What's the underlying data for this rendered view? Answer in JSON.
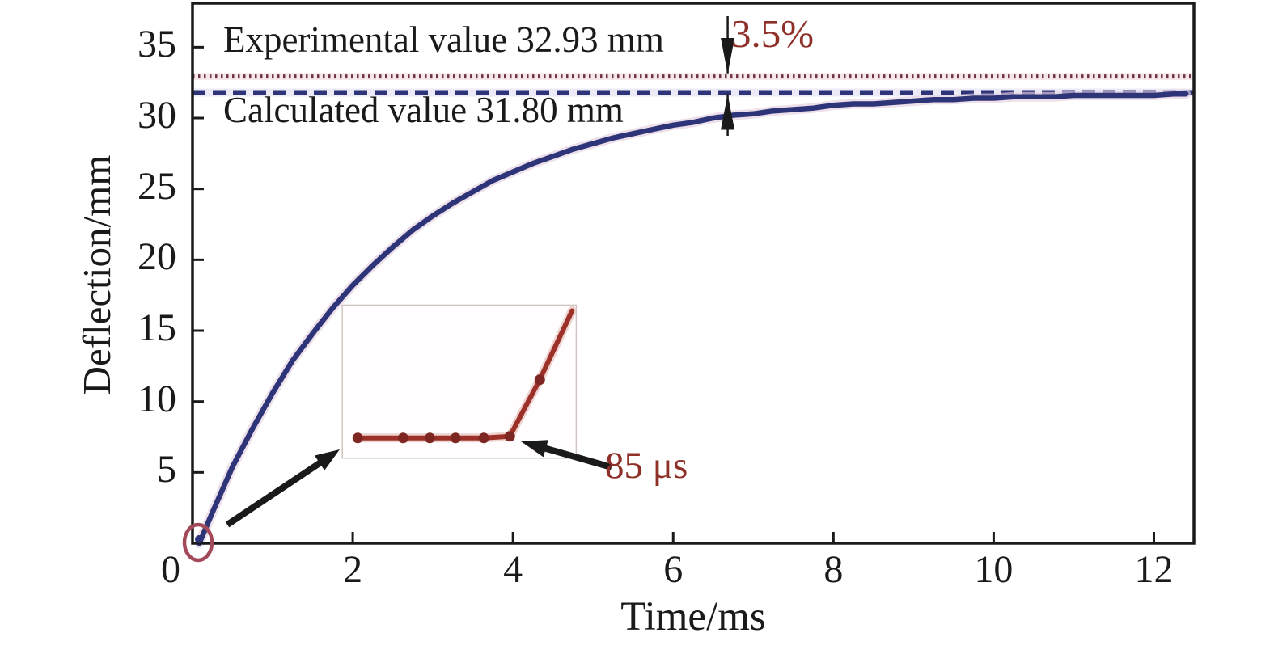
{
  "chart_data": {
    "type": "line",
    "title": "",
    "xlabel": "Time/ms",
    "ylabel": "Deflection/mm",
    "xlim": [
      0,
      12.5
    ],
    "ylim": [
      0,
      38.1
    ],
    "x_ticks": [
      0,
      2,
      4,
      6,
      8,
      10,
      12
    ],
    "y_ticks": [
      5,
      10,
      15,
      20,
      25,
      30,
      35
    ],
    "grid": false,
    "legend": "none",
    "series": [
      {
        "name": "calculated-deflection-curve",
        "color": "#2e3478",
        "style": "solid",
        "x": [
          0.085,
          0.25,
          0.5,
          0.75,
          1,
          1.25,
          1.5,
          1.75,
          2,
          2.25,
          2.5,
          2.75,
          3,
          3.25,
          3.5,
          3.75,
          4,
          4.25,
          4.5,
          4.75,
          5,
          5.25,
          5.5,
          5.75,
          6,
          6.25,
          6.5,
          6.75,
          7,
          7.25,
          7.5,
          7.75,
          8,
          8.25,
          8.5,
          8.75,
          9,
          9.25,
          9.5,
          9.75,
          10,
          10.25,
          10.5,
          10.75,
          11,
          11.25,
          11.5,
          11.75,
          12,
          12.25,
          12.4
        ],
        "y": [
          0,
          2.2,
          5.4,
          8.1,
          10.6,
          12.9,
          14.8,
          16.6,
          18.2,
          19.6,
          20.9,
          22.1,
          23.1,
          24.0,
          24.8,
          25.6,
          26.2,
          26.8,
          27.3,
          27.8,
          28.2,
          28.6,
          28.9,
          29.2,
          29.5,
          29.7,
          30.0,
          30.2,
          30.3,
          30.5,
          30.6,
          30.7,
          30.9,
          31.0,
          31.0,
          31.1,
          31.2,
          31.3,
          31.3,
          31.4,
          31.4,
          31.5,
          31.5,
          31.5,
          31.6,
          31.6,
          31.6,
          31.6,
          31.6,
          31.7,
          31.7
        ]
      }
    ],
    "reference_lines": [
      {
        "label": "Experimental value 32.93 mm",
        "value_mm": 32.93,
        "style": "dotted",
        "color": "#6e3642"
      },
      {
        "label": "Calculated value 31.80 mm",
        "value_mm": 31.8,
        "style": "dashed",
        "color": "#2e3478"
      }
    ],
    "annotations": {
      "difference_label": "3.5%",
      "difference_color": "#8e2f28",
      "difference_arrow_x_ms": 6.68,
      "inset_delay_label": "85 μs",
      "inset_delay_color": "#8e2f28"
    },
    "origin_highlight": {
      "t_ms": 0.05,
      "v_mm": 0,
      "shape": "ellipse",
      "color": "#a34a5a"
    },
    "inset": {
      "description": "magnified view of circled origin region: deflection stays flat for 85 μs, then rises",
      "box_data_coords": {
        "t0_ms": 1.87,
        "t1_ms": 4.79,
        "v0_mm": 6.0,
        "v1_mm": 16.8
      },
      "line_color": "#9c3129",
      "marker_color": "#7e2722",
      "points_norm_x": [
        0.066,
        0.26,
        0.374,
        0.484,
        0.605,
        0.716,
        0.844,
        0.982
      ],
      "points_norm_y": [
        0.868,
        0.868,
        0.868,
        0.868,
        0.868,
        0.857,
        0.487,
        0.037
      ],
      "kink_point_index": 5
    }
  }
}
